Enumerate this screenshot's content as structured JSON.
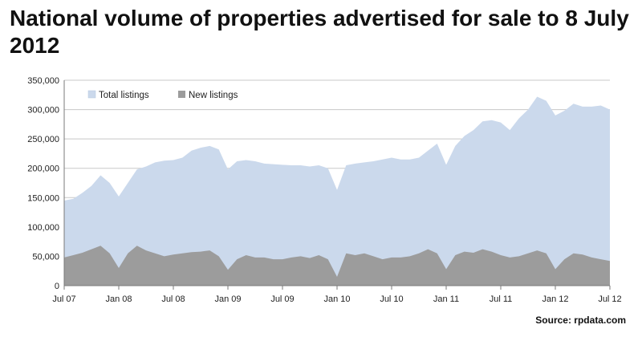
{
  "title": "National volume of properties advertised for sale to 8 July 2012",
  "source": "Source: rpdata.com",
  "chart_data": {
    "type": "area",
    "title": "National volume of properties advertised for sale to 8 July 2012",
    "xlabel": "",
    "ylabel": "",
    "ylim": [
      0,
      350000
    ],
    "y_ticks": [
      "0",
      "50,000",
      "100,000",
      "150,000",
      "200,000",
      "250,000",
      "300,000",
      "350,000"
    ],
    "x_ticks": [
      "Jul 07",
      "Jan 08",
      "Jul 08",
      "Jan 09",
      "Jul 09",
      "Jan 10",
      "Jul 10",
      "Jan 11",
      "Jul 11",
      "Jan 12",
      "Jul 12"
    ],
    "grid": true,
    "legend_position": "top-left",
    "x": [
      "2007-07",
      "2007-08",
      "2007-09",
      "2007-10",
      "2007-11",
      "2007-12",
      "2008-01",
      "2008-02",
      "2008-03",
      "2008-04",
      "2008-05",
      "2008-06",
      "2008-07",
      "2008-08",
      "2008-09",
      "2008-10",
      "2008-11",
      "2008-12",
      "2009-01",
      "2009-02",
      "2009-03",
      "2009-04",
      "2009-05",
      "2009-06",
      "2009-07",
      "2009-08",
      "2009-09",
      "2009-10",
      "2009-11",
      "2009-12",
      "2010-01",
      "2010-02",
      "2010-03",
      "2010-04",
      "2010-05",
      "2010-06",
      "2010-07",
      "2010-08",
      "2010-09",
      "2010-10",
      "2010-11",
      "2010-12",
      "2011-01",
      "2011-02",
      "2011-03",
      "2011-04",
      "2011-05",
      "2011-06",
      "2011-07",
      "2011-08",
      "2011-09",
      "2011-10",
      "2011-11",
      "2011-12",
      "2012-01",
      "2012-02",
      "2012-03",
      "2012-04",
      "2012-05",
      "2012-06",
      "2012-07"
    ],
    "series": [
      {
        "name": "Total listings",
        "color": "#cbd9ec",
        "values": [
          145000,
          148000,
          158000,
          170000,
          188000,
          175000,
          152000,
          175000,
          198000,
          203000,
          210000,
          213000,
          214000,
          218000,
          230000,
          235000,
          238000,
          232000,
          198000,
          212000,
          214000,
          212000,
          208000,
          207000,
          206000,
          205000,
          205000,
          203000,
          205000,
          200000,
          163000,
          205000,
          208000,
          210000,
          212000,
          215000,
          218000,
          215000,
          215000,
          218000,
          230000,
          242000,
          206000,
          238000,
          255000,
          265000,
          280000,
          282000,
          278000,
          265000,
          285000,
          300000,
          322000,
          315000,
          290000,
          298000,
          310000,
          305000,
          305000,
          307000,
          300000
        ]
      },
      {
        "name": "New listings",
        "color": "#9c9c9c",
        "values": [
          48000,
          52000,
          56000,
          62000,
          68000,
          55000,
          30000,
          55000,
          68000,
          60000,
          55000,
          50000,
          53000,
          55000,
          57000,
          58000,
          60000,
          50000,
          27000,
          45000,
          52000,
          48000,
          48000,
          45000,
          45000,
          48000,
          50000,
          47000,
          52000,
          45000,
          15000,
          55000,
          52000,
          55000,
          50000,
          45000,
          48000,
          48000,
          50000,
          55000,
          62000,
          55000,
          28000,
          52000,
          58000,
          56000,
          62000,
          58000,
          52000,
          48000,
          50000,
          55000,
          60000,
          55000,
          28000,
          45000,
          55000,
          53000,
          48000,
          45000,
          42000
        ]
      }
    ]
  }
}
